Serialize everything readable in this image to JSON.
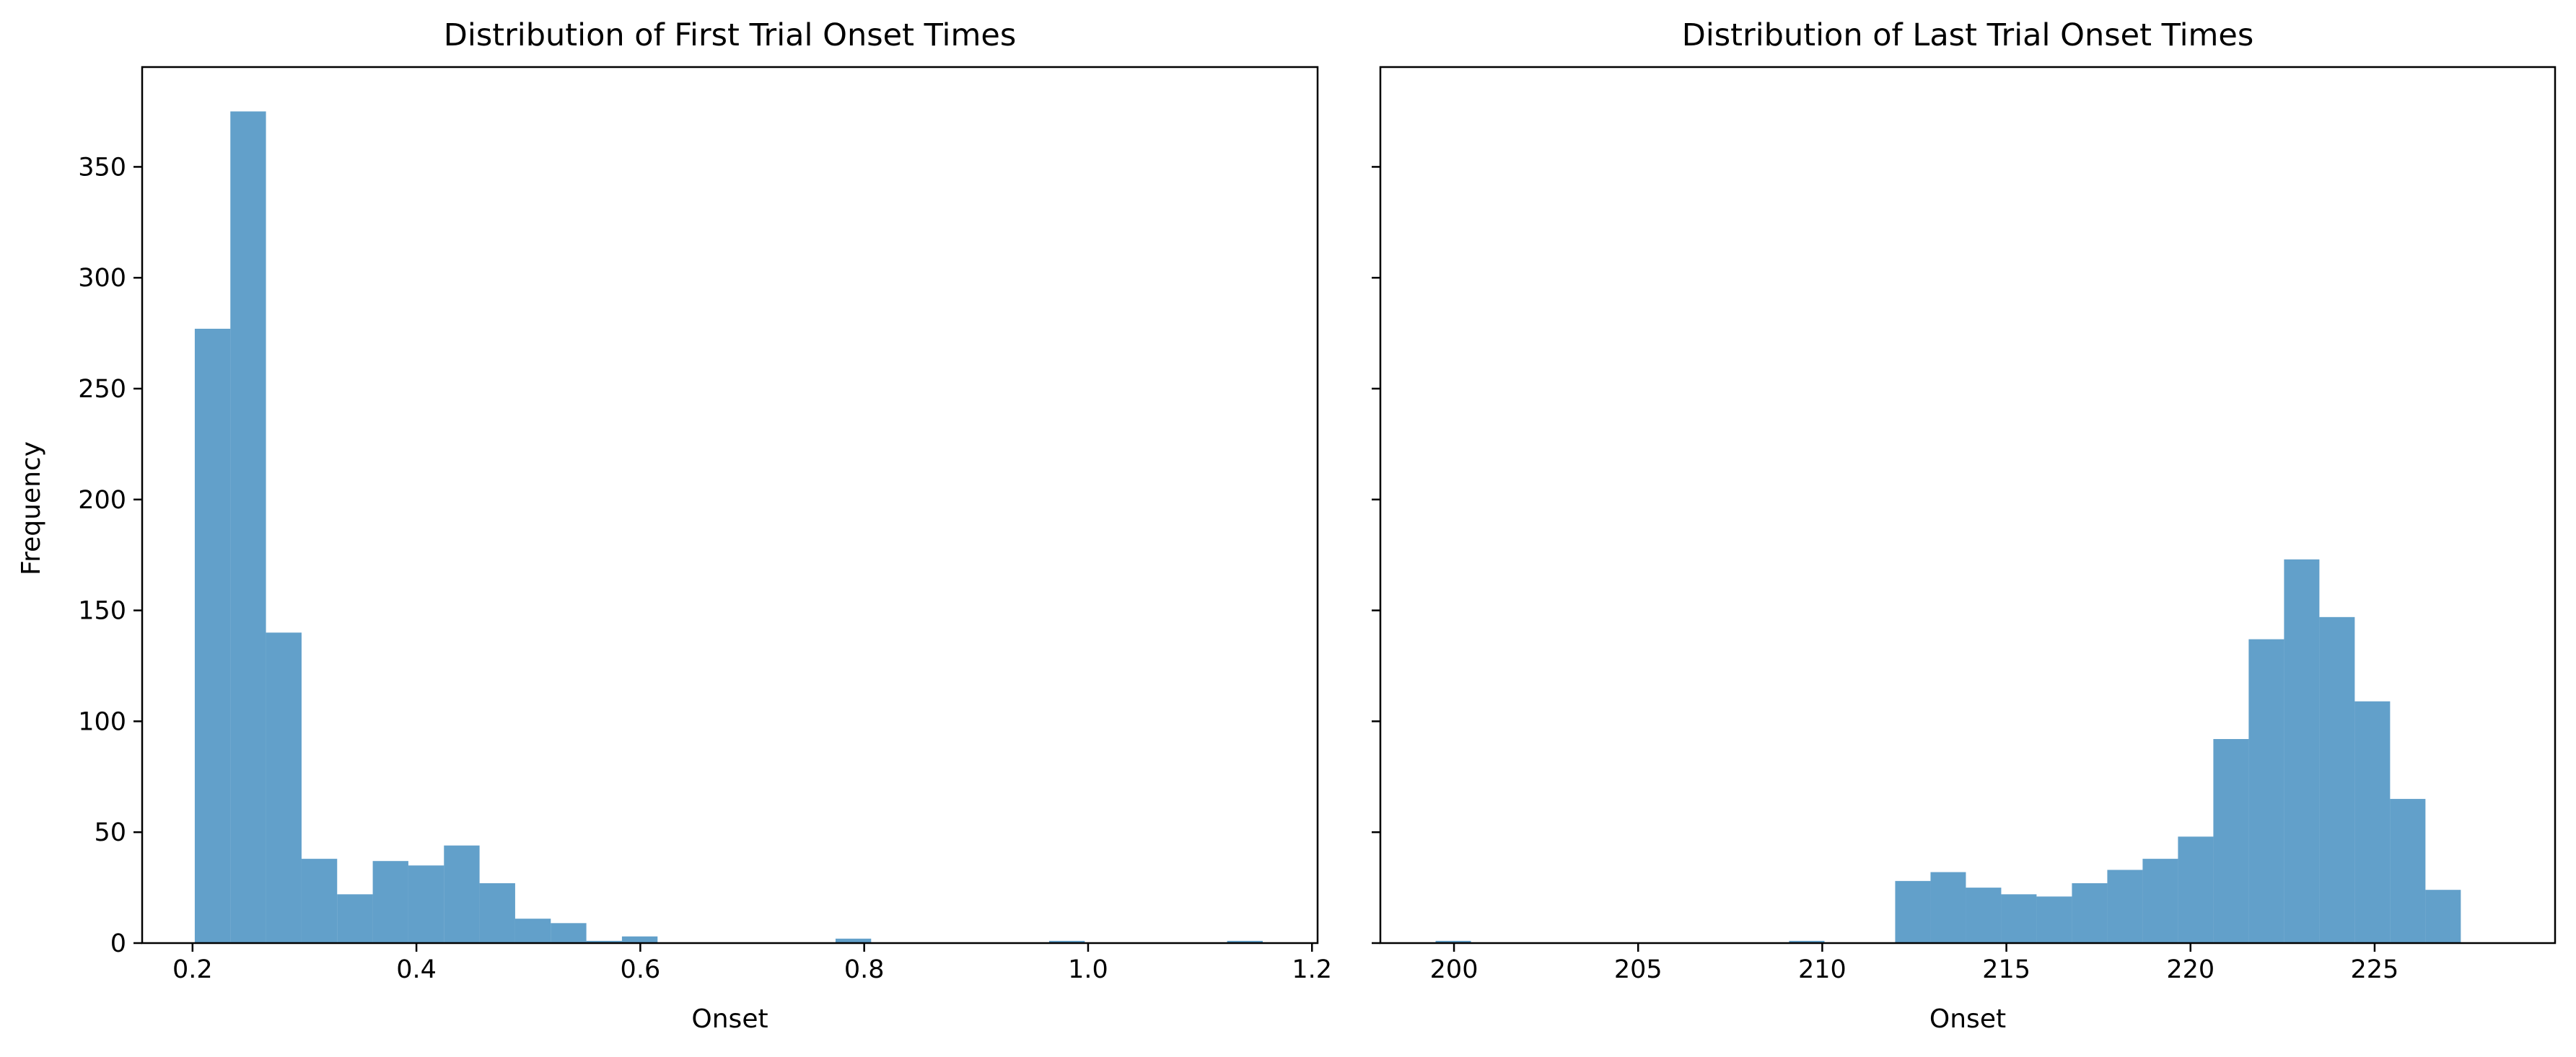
{
  "figure": {
    "shared_ylabel": "Frequency"
  },
  "colors": {
    "bar": "#1f77b4",
    "bar_opacity": 0.7,
    "axis": "#000000",
    "background": "#ffffff"
  },
  "chart_data": [
    {
      "type": "bar",
      "title": "Distribution of First Trial Onset Times",
      "xlabel": "Onset",
      "ylabel": "Frequency",
      "xlim": [
        0.155,
        1.205
      ],
      "ylim": [
        0,
        395
      ],
      "xticks": [
        0.2,
        0.4,
        0.6,
        0.8,
        1.0,
        1.2
      ],
      "xtick_labels": [
        "0.2",
        "0.4",
        "0.6",
        "0.8",
        "1.0",
        "1.2"
      ],
      "yticks": [
        0,
        50,
        100,
        150,
        200,
        250,
        300,
        350
      ],
      "ytick_labels": [
        "0",
        "50",
        "100",
        "150",
        "200",
        "250",
        "300",
        "350"
      ],
      "grid": false,
      "bin_edges": [
        0.202,
        0.2338,
        0.2656,
        0.2974,
        0.3292,
        0.361,
        0.3928,
        0.4246,
        0.4564,
        0.4882,
        0.52,
        0.5518,
        0.5836,
        0.6154,
        0.6472,
        0.679,
        0.7108,
        0.7426,
        0.7744,
        0.8062,
        0.838,
        0.8698,
        0.9016,
        0.9334,
        0.9652,
        0.997,
        1.0288,
        1.0606,
        1.0924,
        1.1242,
        1.156
      ],
      "values": [
        277,
        375,
        140,
        38,
        22,
        37,
        35,
        44,
        27,
        11,
        9,
        1,
        3,
        0,
        0,
        0,
        0,
        0,
        2,
        0,
        0,
        0,
        0,
        0,
        1,
        0,
        0,
        0,
        0,
        1
      ]
    },
    {
      "type": "bar",
      "title": "Distribution of Last Trial Onset Times",
      "xlabel": "Onset",
      "ylabel": "",
      "xlim": [
        198.0,
        229.9
      ],
      "ylim": [
        0,
        395
      ],
      "xticks": [
        200,
        205,
        210,
        215,
        220,
        225
      ],
      "xtick_labels": [
        "200",
        "205",
        "210",
        "215",
        "220",
        "225"
      ],
      "yticks": [
        0,
        50,
        100,
        150,
        200,
        250,
        300,
        350
      ],
      "ytick_labels": [],
      "sharey": true,
      "grid": false,
      "bin_edges": [
        199.5,
        200.46,
        201.42,
        202.38,
        203.34,
        204.3,
        205.26,
        206.22,
        207.18,
        208.14,
        209.1,
        210.06,
        211.02,
        211.98,
        212.94,
        213.9,
        214.86,
        215.82,
        216.78,
        217.74,
        218.7,
        219.66,
        220.62,
        221.58,
        222.54,
        223.5,
        224.46,
        225.42,
        226.38,
        227.34,
        228.3
      ],
      "values": [
        1,
        0,
        0,
        0,
        0,
        0,
        0,
        0,
        0,
        0,
        1,
        0,
        0,
        28,
        32,
        25,
        22,
        21,
        27,
        33,
        38,
        48,
        92,
        137,
        173,
        147,
        109,
        65,
        24,
        0
      ]
    }
  ]
}
